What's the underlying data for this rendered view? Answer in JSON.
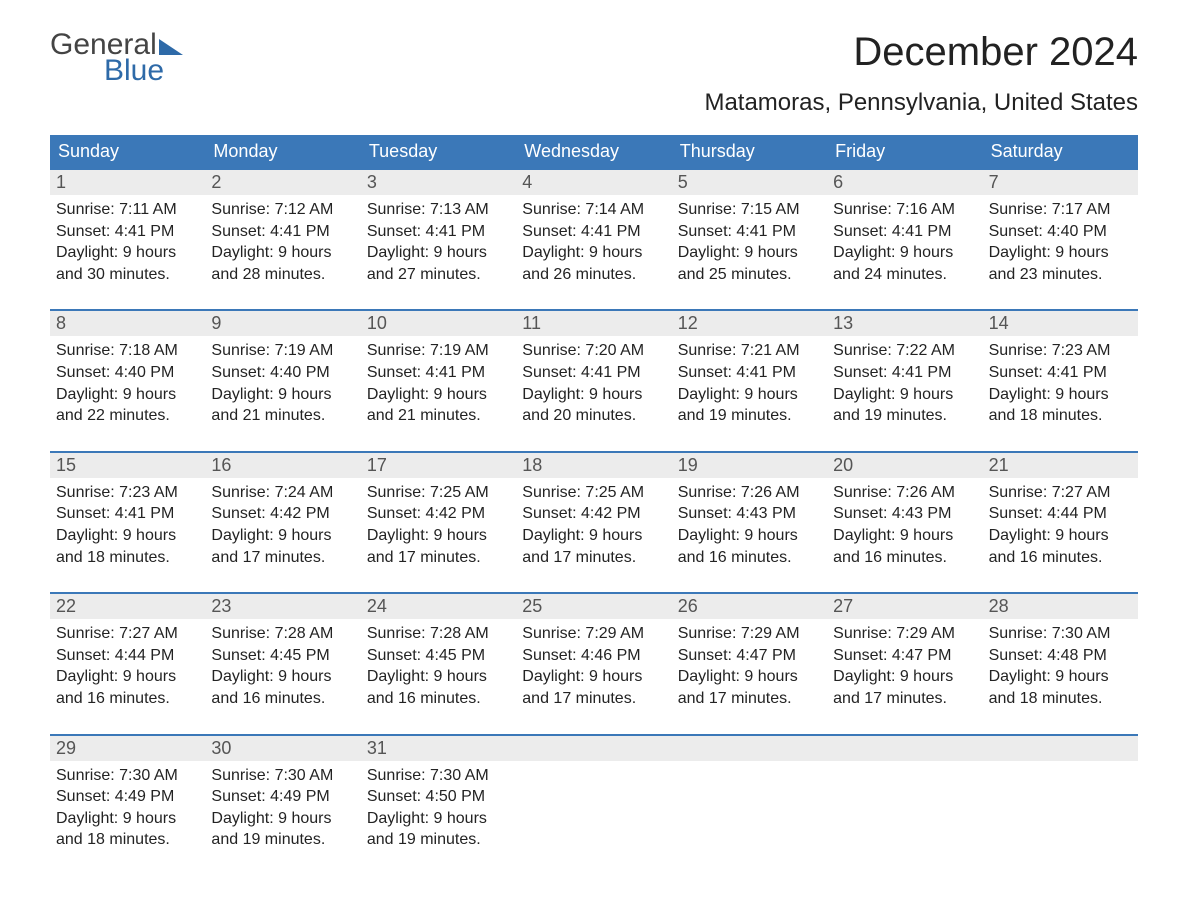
{
  "brand": {
    "word1": "General",
    "word2": "Blue"
  },
  "title": "December 2024",
  "location": "Matamoras, Pennsylvania, United States",
  "colors": {
    "header_bg": "#3b78b8",
    "header_text": "#ffffff",
    "daynum_bg": "#ececec",
    "daynum_text": "#555555",
    "body_text": "#232323",
    "week_border": "#3b78b8",
    "brand_blue": "#2e6aa8"
  },
  "typography": {
    "title_fontsize": 40,
    "location_fontsize": 24,
    "dow_fontsize": 18,
    "daynum_fontsize": 18,
    "body_fontsize": 16
  },
  "days_of_week": [
    "Sunday",
    "Monday",
    "Tuesday",
    "Wednesday",
    "Thursday",
    "Friday",
    "Saturday"
  ],
  "weeks": [
    [
      {
        "n": "1",
        "sr": "Sunrise: 7:11 AM",
        "ss": "Sunset: 4:41 PM",
        "d1": "Daylight: 9 hours",
        "d2": "and 30 minutes."
      },
      {
        "n": "2",
        "sr": "Sunrise: 7:12 AM",
        "ss": "Sunset: 4:41 PM",
        "d1": "Daylight: 9 hours",
        "d2": "and 28 minutes."
      },
      {
        "n": "3",
        "sr": "Sunrise: 7:13 AM",
        "ss": "Sunset: 4:41 PM",
        "d1": "Daylight: 9 hours",
        "d2": "and 27 minutes."
      },
      {
        "n": "4",
        "sr": "Sunrise: 7:14 AM",
        "ss": "Sunset: 4:41 PM",
        "d1": "Daylight: 9 hours",
        "d2": "and 26 minutes."
      },
      {
        "n": "5",
        "sr": "Sunrise: 7:15 AM",
        "ss": "Sunset: 4:41 PM",
        "d1": "Daylight: 9 hours",
        "d2": "and 25 minutes."
      },
      {
        "n": "6",
        "sr": "Sunrise: 7:16 AM",
        "ss": "Sunset: 4:41 PM",
        "d1": "Daylight: 9 hours",
        "d2": "and 24 minutes."
      },
      {
        "n": "7",
        "sr": "Sunrise: 7:17 AM",
        "ss": "Sunset: 4:40 PM",
        "d1": "Daylight: 9 hours",
        "d2": "and 23 minutes."
      }
    ],
    [
      {
        "n": "8",
        "sr": "Sunrise: 7:18 AM",
        "ss": "Sunset: 4:40 PM",
        "d1": "Daylight: 9 hours",
        "d2": "and 22 minutes."
      },
      {
        "n": "9",
        "sr": "Sunrise: 7:19 AM",
        "ss": "Sunset: 4:40 PM",
        "d1": "Daylight: 9 hours",
        "d2": "and 21 minutes."
      },
      {
        "n": "10",
        "sr": "Sunrise: 7:19 AM",
        "ss": "Sunset: 4:41 PM",
        "d1": "Daylight: 9 hours",
        "d2": "and 21 minutes."
      },
      {
        "n": "11",
        "sr": "Sunrise: 7:20 AM",
        "ss": "Sunset: 4:41 PM",
        "d1": "Daylight: 9 hours",
        "d2": "and 20 minutes."
      },
      {
        "n": "12",
        "sr": "Sunrise: 7:21 AM",
        "ss": "Sunset: 4:41 PM",
        "d1": "Daylight: 9 hours",
        "d2": "and 19 minutes."
      },
      {
        "n": "13",
        "sr": "Sunrise: 7:22 AM",
        "ss": "Sunset: 4:41 PM",
        "d1": "Daylight: 9 hours",
        "d2": "and 19 minutes."
      },
      {
        "n": "14",
        "sr": "Sunrise: 7:23 AM",
        "ss": "Sunset: 4:41 PM",
        "d1": "Daylight: 9 hours",
        "d2": "and 18 minutes."
      }
    ],
    [
      {
        "n": "15",
        "sr": "Sunrise: 7:23 AM",
        "ss": "Sunset: 4:41 PM",
        "d1": "Daylight: 9 hours",
        "d2": "and 18 minutes."
      },
      {
        "n": "16",
        "sr": "Sunrise: 7:24 AM",
        "ss": "Sunset: 4:42 PM",
        "d1": "Daylight: 9 hours",
        "d2": "and 17 minutes."
      },
      {
        "n": "17",
        "sr": "Sunrise: 7:25 AM",
        "ss": "Sunset: 4:42 PM",
        "d1": "Daylight: 9 hours",
        "d2": "and 17 minutes."
      },
      {
        "n": "18",
        "sr": "Sunrise: 7:25 AM",
        "ss": "Sunset: 4:42 PM",
        "d1": "Daylight: 9 hours",
        "d2": "and 17 minutes."
      },
      {
        "n": "19",
        "sr": "Sunrise: 7:26 AM",
        "ss": "Sunset: 4:43 PM",
        "d1": "Daylight: 9 hours",
        "d2": "and 16 minutes."
      },
      {
        "n": "20",
        "sr": "Sunrise: 7:26 AM",
        "ss": "Sunset: 4:43 PM",
        "d1": "Daylight: 9 hours",
        "d2": "and 16 minutes."
      },
      {
        "n": "21",
        "sr": "Sunrise: 7:27 AM",
        "ss": "Sunset: 4:44 PM",
        "d1": "Daylight: 9 hours",
        "d2": "and 16 minutes."
      }
    ],
    [
      {
        "n": "22",
        "sr": "Sunrise: 7:27 AM",
        "ss": "Sunset: 4:44 PM",
        "d1": "Daylight: 9 hours",
        "d2": "and 16 minutes."
      },
      {
        "n": "23",
        "sr": "Sunrise: 7:28 AM",
        "ss": "Sunset: 4:45 PM",
        "d1": "Daylight: 9 hours",
        "d2": "and 16 minutes."
      },
      {
        "n": "24",
        "sr": "Sunrise: 7:28 AM",
        "ss": "Sunset: 4:45 PM",
        "d1": "Daylight: 9 hours",
        "d2": "and 16 minutes."
      },
      {
        "n": "25",
        "sr": "Sunrise: 7:29 AM",
        "ss": "Sunset: 4:46 PM",
        "d1": "Daylight: 9 hours",
        "d2": "and 17 minutes."
      },
      {
        "n": "26",
        "sr": "Sunrise: 7:29 AM",
        "ss": "Sunset: 4:47 PM",
        "d1": "Daylight: 9 hours",
        "d2": "and 17 minutes."
      },
      {
        "n": "27",
        "sr": "Sunrise: 7:29 AM",
        "ss": "Sunset: 4:47 PM",
        "d1": "Daylight: 9 hours",
        "d2": "and 17 minutes."
      },
      {
        "n": "28",
        "sr": "Sunrise: 7:30 AM",
        "ss": "Sunset: 4:48 PM",
        "d1": "Daylight: 9 hours",
        "d2": "and 18 minutes."
      }
    ],
    [
      {
        "n": "29",
        "sr": "Sunrise: 7:30 AM",
        "ss": "Sunset: 4:49 PM",
        "d1": "Daylight: 9 hours",
        "d2": "and 18 minutes."
      },
      {
        "n": "30",
        "sr": "Sunrise: 7:30 AM",
        "ss": "Sunset: 4:49 PM",
        "d1": "Daylight: 9 hours",
        "d2": "and 19 minutes."
      },
      {
        "n": "31",
        "sr": "Sunrise: 7:30 AM",
        "ss": "Sunset: 4:50 PM",
        "d1": "Daylight: 9 hours",
        "d2": "and 19 minutes."
      },
      null,
      null,
      null,
      null
    ]
  ]
}
